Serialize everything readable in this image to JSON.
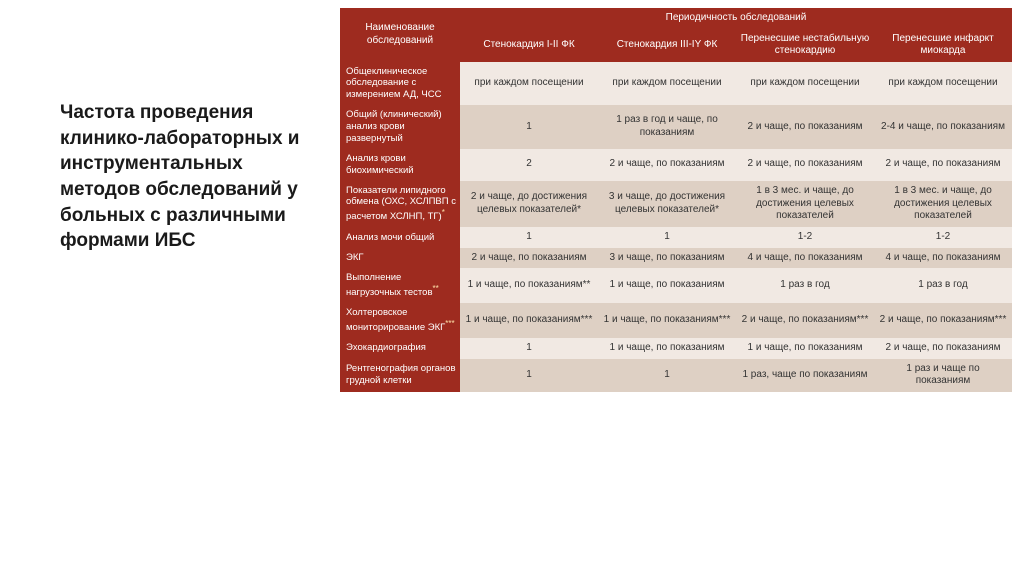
{
  "title": "Частота проведения клинико-лабораторных и инструментальных методов обследований у больных с различными формами ИБС",
  "colors": {
    "header_bg": "#9e2b1f",
    "header_fg": "#ffffff",
    "band_light": "#f1e9e3",
    "band_dark": "#ded0c4",
    "text": "#333333",
    "title_color": "#1a1a1a"
  },
  "typography": {
    "title_fontsize": 19,
    "table_fontsize": 10,
    "font_family": "Arial"
  },
  "table": {
    "type": "table",
    "header": {
      "name_col": "Наименование обследований",
      "freq_span": "Периодичность обследований",
      "cols": [
        "Стенокардия I-II ФК",
        "Стенокардия III-IY ФК",
        "Перенесшие нестабильную стенокардию",
        "Перенесшие инфаркт миокарда"
      ]
    },
    "rows": [
      {
        "label": "Общеклиническое обследование с измерением АД, ЧСС",
        "band": "light",
        "cells": [
          "при каждом посещении",
          "при каждом посещении",
          "при каждом посещении",
          "при каждом посещении"
        ]
      },
      {
        "label": "Общий (клинический) анализ крови развернутый",
        "band": "dark",
        "cells": [
          "1",
          "1 раз в год и чаще, по показаниям",
          "2 и чаще, по показаниям",
          "2-4 и чаще, по показаниям"
        ]
      },
      {
        "label": "Анализ крови биохимический",
        "band": "light",
        "cells": [
          "2",
          "2 и чаще, по показаниям",
          "2 и чаще, по показаниям",
          "2 и чаще, по показаниям"
        ]
      },
      {
        "label": "Показатели липидного обмена (ОХС, ХСЛПВП с расчетом ХСЛНП, ТГ)",
        "sup": "*",
        "band": "dark",
        "cells": [
          "2 и чаще, до достижения целевых показателей*",
          "3  и чаще, до достижения целевых показателей*",
          "1 в 3 мес. и чаще, до достижения целевых показателей",
          "1 в 3 мес. и чаще, до достижения целевых показателей"
        ]
      },
      {
        "label": "Анализ мочи общий",
        "band": "light",
        "cells": [
          "1",
          "1",
          "1-2",
          "1-2"
        ]
      },
      {
        "label": "ЭКГ",
        "band": "dark",
        "cells": [
          "2 и чаще, по показаниям",
          "3 и чаще, по показаниям",
          "4 и чаще, по показаниям",
          "4 и чаще, по показаниям"
        ]
      },
      {
        "label": "Выполнение нагрузочных тестов",
        "sup": "**",
        "band": "light",
        "cells": [
          "1 и чаще, по показаниям**",
          "1 и чаще, по показаниям",
          "1 раз в год",
          "1 раз в год"
        ]
      },
      {
        "label": "Холтеровское мониторирование ЭКГ",
        "sup": "***",
        "band": "dark",
        "cells": [
          "1 и чаще, по показаниям***",
          "1 и чаще, по показаниям***",
          "2 и чаще, по показаниям***",
          "2 и чаще, по показаниям***"
        ]
      },
      {
        "label": "Эхокардиография",
        "band": "light",
        "cells": [
          "1",
          "1 и чаще, по показаниям",
          "1 и чаще, по показаниям",
          "2 и чаще, по показаниям"
        ]
      },
      {
        "label": "Рентгенография органов грудной клетки",
        "band": "dark",
        "cells": [
          "1",
          "1",
          "1 раз, чаще по показаниям",
          "1 раз и чаще по показаниям"
        ]
      }
    ]
  }
}
